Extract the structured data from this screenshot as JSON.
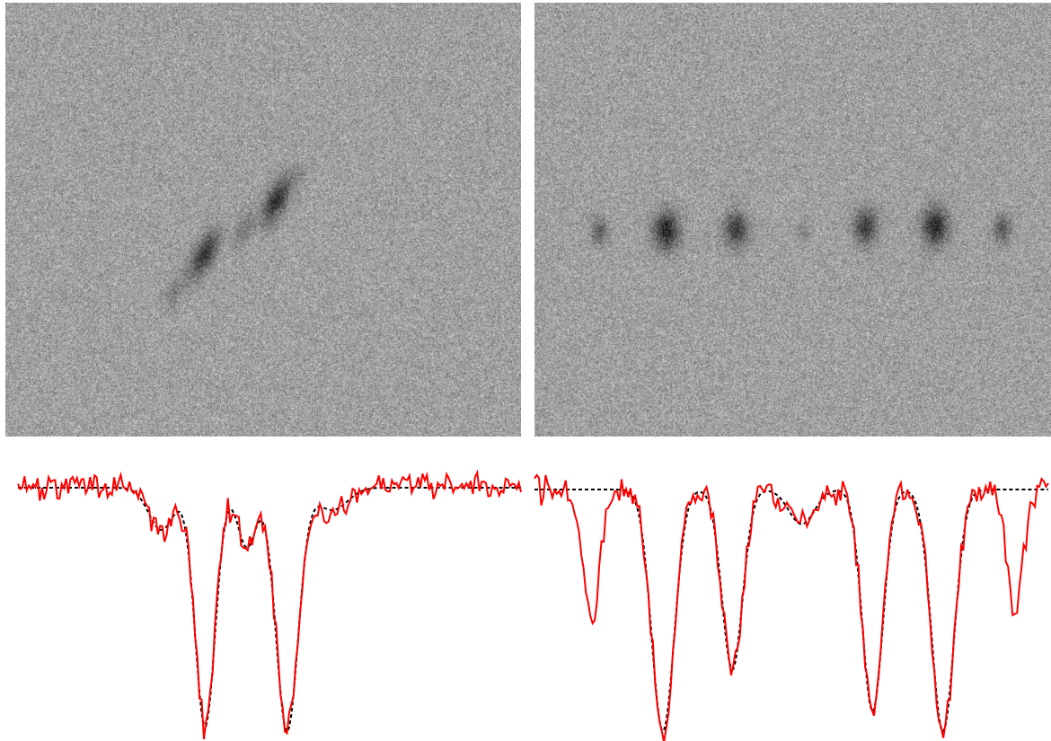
{
  "colors": {
    "background": "#ffffff",
    "image_gray": "#9f9f9f",
    "spot_dark": "#1a1a1a",
    "measured_profile": "#ff0000",
    "fit_profile": "#000000"
  },
  "left_image": {
    "description_spots": [
      {
        "u": 0.385,
        "v": 0.58,
        "depth": 0.78,
        "su": 0.014,
        "sv": 0.038,
        "tilt": -0.35
      },
      {
        "u": 0.525,
        "v": 0.455,
        "depth": 0.82,
        "su": 0.014,
        "sv": 0.038,
        "tilt": -0.35
      },
      {
        "u": 0.462,
        "v": 0.52,
        "depth": 0.28,
        "su": 0.012,
        "sv": 0.03,
        "tilt": -0.35
      },
      {
        "u": 0.325,
        "v": 0.665,
        "depth": 0.22,
        "su": 0.013,
        "sv": 0.03,
        "tilt": -0.35
      },
      {
        "u": 0.57,
        "v": 0.4,
        "depth": 0.12,
        "su": 0.01,
        "sv": 0.022,
        "tilt": -0.35
      }
    ]
  },
  "right_image": {
    "description_spots": [
      {
        "u": 0.125,
        "v": 0.525,
        "depth": 0.42,
        "su": 0.012,
        "sv": 0.022,
        "tilt": 0
      },
      {
        "u": 0.255,
        "v": 0.525,
        "depth": 0.88,
        "su": 0.017,
        "sv": 0.03,
        "tilt": 0
      },
      {
        "u": 0.39,
        "v": 0.522,
        "depth": 0.72,
        "su": 0.016,
        "sv": 0.028,
        "tilt": 0
      },
      {
        "u": 0.52,
        "v": 0.53,
        "depth": 0.18,
        "su": 0.009,
        "sv": 0.016,
        "tilt": 0
      },
      {
        "u": 0.64,
        "v": 0.515,
        "depth": 0.72,
        "su": 0.016,
        "sv": 0.028,
        "tilt": 0
      },
      {
        "u": 0.775,
        "v": 0.515,
        "depth": 0.88,
        "su": 0.017,
        "sv": 0.03,
        "tilt": 0
      },
      {
        "u": 0.905,
        "v": 0.52,
        "depth": 0.52,
        "su": 0.012,
        "sv": 0.022,
        "tilt": 0
      }
    ]
  },
  "left_profile": {
    "baseline": 1.0,
    "dips": [
      {
        "center": 0.285,
        "width": 0.025,
        "depth": 0.17
      },
      {
        "center": 0.372,
        "width": 0.02,
        "depth": 0.96
      },
      {
        "center": 0.455,
        "width": 0.018,
        "depth": 0.24
      },
      {
        "center": 0.535,
        "width": 0.022,
        "depth": 0.98
      },
      {
        "center": 0.625,
        "width": 0.03,
        "depth": 0.09
      }
    ]
  },
  "right_profile": {
    "baseline": 1.0,
    "dips": [
      {
        "center": 0.11,
        "width": 0.016,
        "depth": 0.55,
        "fit": false
      },
      {
        "center": 0.25,
        "width": 0.022,
        "depth": 0.98
      },
      {
        "center": 0.385,
        "width": 0.02,
        "depth": 0.73
      },
      {
        "center": 0.52,
        "width": 0.025,
        "depth": 0.14
      },
      {
        "center": 0.658,
        "width": 0.02,
        "depth": 0.9
      },
      {
        "center": 0.795,
        "width": 0.022,
        "depth": 0.98
      },
      {
        "center": 0.935,
        "width": 0.016,
        "depth": 0.47,
        "fit": false
      }
    ]
  }
}
